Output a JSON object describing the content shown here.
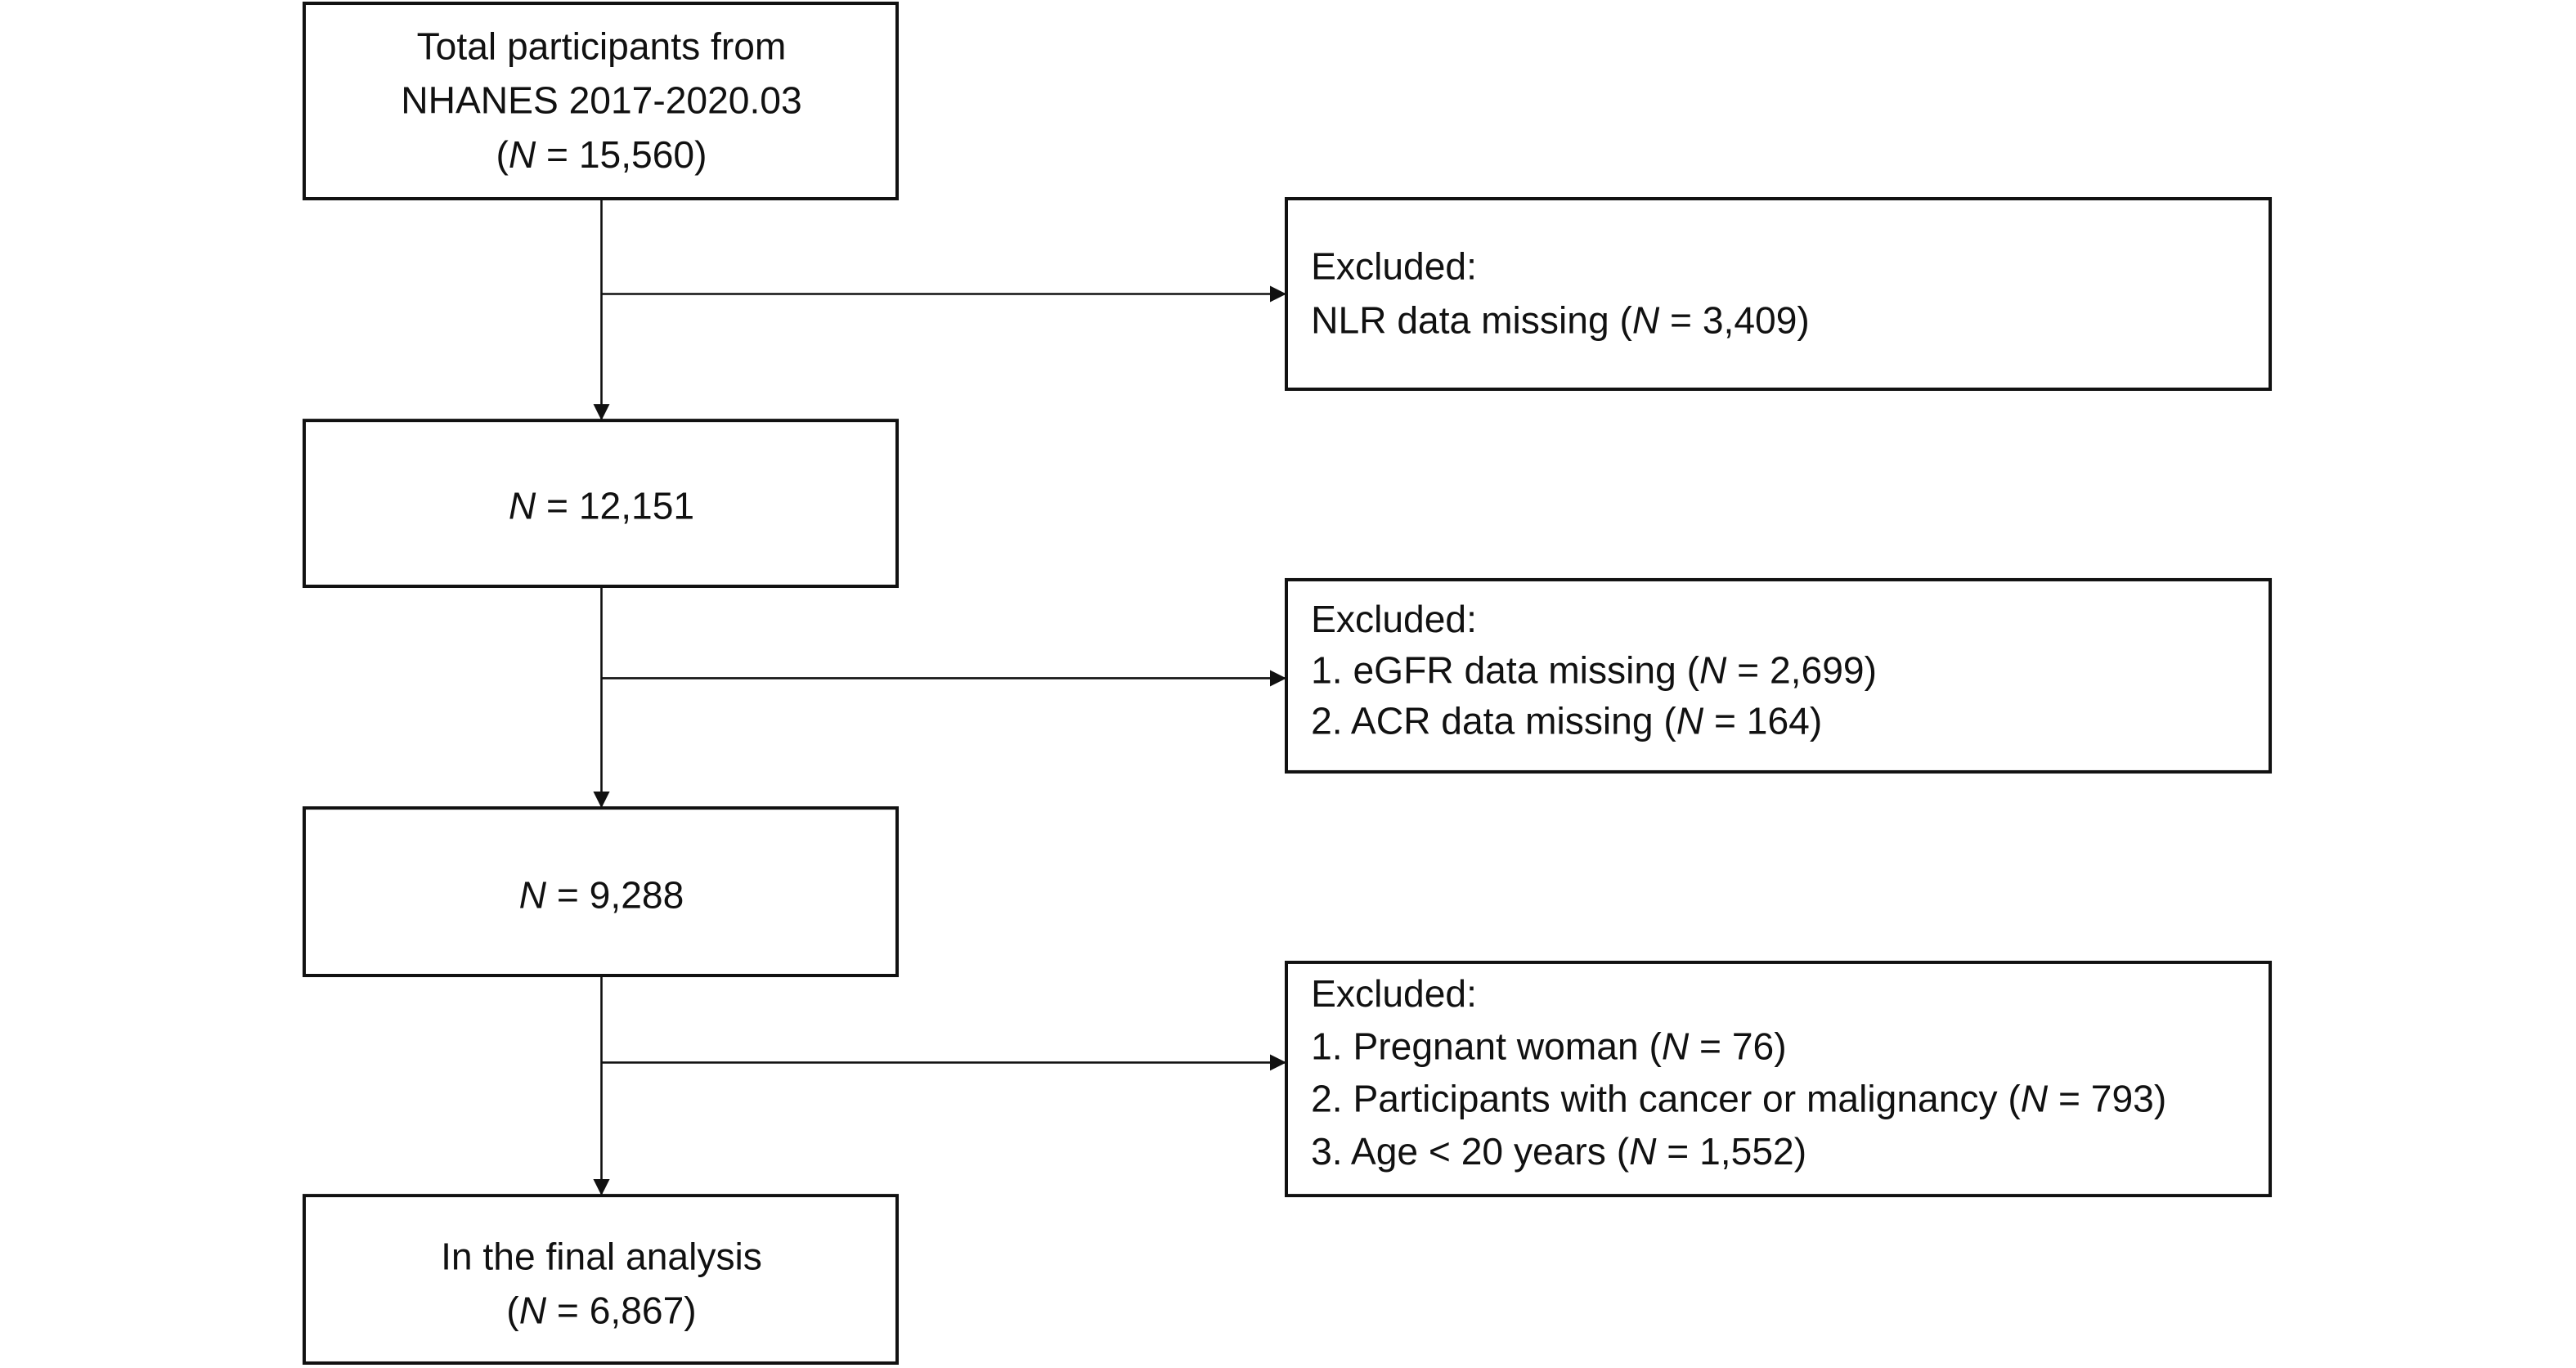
{
  "nodes": [
    {
      "lines": [
        "Total participants from",
        "NHANES 2017-2020.03",
        "(N = 15,560)"
      ]
    },
    {
      "lines": [
        "N = 12,151"
      ]
    },
    {
      "lines": [
        "N = 9,288"
      ]
    },
    {
      "lines": [
        "In the final analysis",
        "(N = 6,867)"
      ]
    }
  ],
  "exclusions": [
    {
      "lines": [
        "Excluded:",
        "NLR data missing (N = 3,409)"
      ]
    },
    {
      "lines": [
        "Excluded:",
        "1. eGFR data missing (N = 2,699)",
        "2. ACR data missing (N = 164)"
      ]
    },
    {
      "lines": [
        "Excluded:",
        "1. Pregnant woman (N = 76)",
        "2. Participants with cancer or malignancy (N = 793)",
        "3. Age < 20 years (N = 1,552)"
      ]
    }
  ]
}
